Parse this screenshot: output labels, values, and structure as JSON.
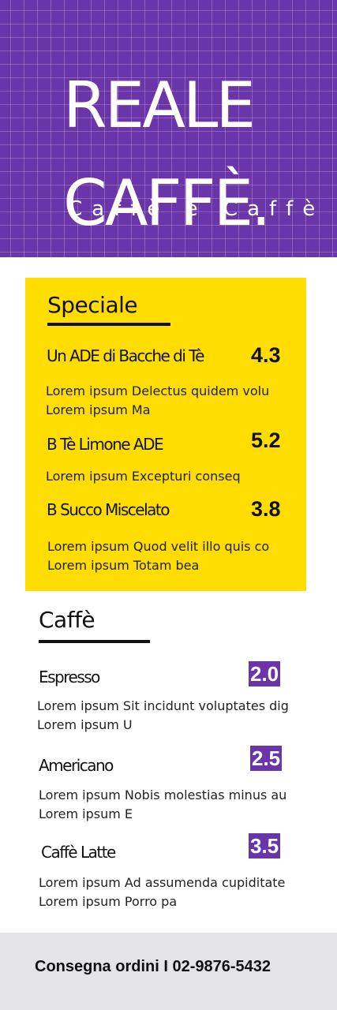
{
  "hero": {
    "title": "REALE\nCAFFÈ.",
    "subtitle": "Caffè e Caffè",
    "colors": {
      "background": "#6a35a8",
      "grid": "#ffffff"
    }
  },
  "speciale": {
    "title": "Speciale",
    "background": "#ffdd00",
    "items": [
      {
        "name": "Un ADE di Bacche di Tè",
        "price": "4.3",
        "desc": "Lorem ipsum Delectus quidem volu Lorem ipsum Ma"
      },
      {
        "name": "B Tè Limone ADE",
        "price": "5.2",
        "desc": "Lorem ipsum Excepturi conseq"
      },
      {
        "name": "B Succo Miscelato",
        "price": "3.8",
        "desc": "Lorem ipsum Quod velit illo quis co Lorem ipsum Totam bea"
      }
    ]
  },
  "caffe": {
    "title": "Caffè",
    "price_color": "#6a35a8",
    "items": [
      {
        "name": "Espresso",
        "price": "2.0",
        "desc": "Lorem ipsum Sit incidunt voluptates dig Lorem ipsum U"
      },
      {
        "name": "Americano",
        "price": "2.5",
        "desc": "Lorem ipsum Nobis molestias minus au Lorem ipsum E"
      },
      {
        "name": "Caffè Latte",
        "price": "3.5",
        "desc": "Lorem ipsum Ad assumenda cupiditate Lorem ipsum Porro pa"
      }
    ]
  },
  "footer": {
    "text": "Consegna ordini I 02-9876-5432"
  }
}
